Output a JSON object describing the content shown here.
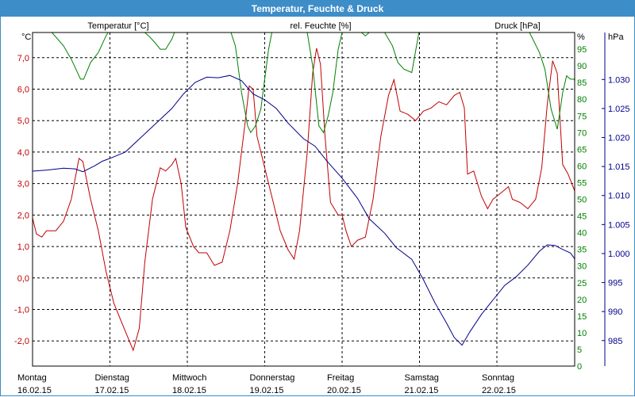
{
  "window": {
    "title": "Temperatur, Feuchte & Druck"
  },
  "colors": {
    "temperature": "#c00000",
    "humidity": "#008000",
    "pressure": "#00008b",
    "grid": "#000000",
    "title_bar": "#3c8dc8"
  },
  "chart_data": {
    "type": "line",
    "title": "Temperatur, Feuchte & Druck",
    "x_days": [
      {
        "day": "Montag",
        "date": "16.02.15"
      },
      {
        "day": "Dienstag",
        "date": "17.02.15"
      },
      {
        "day": "Mittwoch",
        "date": "18.02.15"
      },
      {
        "day": "Donnerstag",
        "date": "19.02.15"
      },
      {
        "day": "Freitag",
        "date": "20.02.15"
      },
      {
        "day": "Samstag",
        "date": "21.02.15"
      },
      {
        "day": "Sonntag",
        "date": "22.02.15"
      }
    ],
    "x_range_days": [
      0,
      7
    ],
    "grid": true,
    "axes": {
      "temperature": {
        "label": "Temperatur [°C]",
        "unit": "°C",
        "ylim": [
          -2.8,
          7.8
        ],
        "ticks": [
          "-2,0",
          "-1,0",
          "0,0",
          "1,0",
          "2,0",
          "3,0",
          "4,0",
          "5,0",
          "6,0",
          "7,0"
        ]
      },
      "humidity": {
        "label": "rel. Feuchte [%]",
        "unit": "%",
        "ylim": [
          0,
          100
        ],
        "ticks": [
          "0",
          "5",
          "10",
          "15",
          "20",
          "25",
          "30",
          "35",
          "40",
          "45",
          "50",
          "55",
          "60",
          "65",
          "70",
          "75",
          "80",
          "85",
          "90",
          "95"
        ]
      },
      "pressure": {
        "label": "Druck [hPa]",
        "unit": "hPa",
        "ylim": [
          980.6,
          1038.1
        ],
        "ticks": [
          "985",
          "990",
          "995",
          "1.000",
          "1.005",
          "1.010",
          "1.015",
          "1.020",
          "1.025",
          "1.030"
        ]
      }
    },
    "series": [
      {
        "name": "Temperatur [°C]",
        "axis": "temperature",
        "points": [
          [
            0.0,
            1.9
          ],
          [
            0.05,
            1.4
          ],
          [
            0.12,
            1.3
          ],
          [
            0.18,
            1.5
          ],
          [
            0.3,
            1.5
          ],
          [
            0.4,
            1.8
          ],
          [
            0.5,
            2.5
          ],
          [
            0.6,
            3.8
          ],
          [
            0.65,
            3.7
          ],
          [
            0.75,
            2.5
          ],
          [
            0.85,
            1.5
          ],
          [
            0.95,
            0.2
          ],
          [
            1.05,
            -0.8
          ],
          [
            1.15,
            -1.4
          ],
          [
            1.25,
            -2.0
          ],
          [
            1.3,
            -2.3
          ],
          [
            1.38,
            -1.6
          ],
          [
            1.45,
            0.5
          ],
          [
            1.55,
            2.5
          ],
          [
            1.65,
            3.5
          ],
          [
            1.72,
            3.4
          ],
          [
            1.8,
            3.6
          ],
          [
            1.85,
            3.8
          ],
          [
            1.92,
            3.0
          ],
          [
            1.98,
            1.6
          ],
          [
            2.08,
            1.0
          ],
          [
            2.15,
            0.8
          ],
          [
            2.25,
            0.8
          ],
          [
            2.35,
            0.4
          ],
          [
            2.45,
            0.5
          ],
          [
            2.55,
            1.5
          ],
          [
            2.65,
            3.0
          ],
          [
            2.75,
            5.0
          ],
          [
            2.8,
            6.1
          ],
          [
            2.85,
            6.0
          ],
          [
            2.9,
            4.5
          ],
          [
            3.0,
            3.5
          ],
          [
            3.1,
            2.5
          ],
          [
            3.2,
            1.5
          ],
          [
            3.3,
            0.9
          ],
          [
            3.38,
            0.6
          ],
          [
            3.45,
            1.5
          ],
          [
            3.55,
            4.0
          ],
          [
            3.62,
            6.5
          ],
          [
            3.67,
            7.3
          ],
          [
            3.72,
            6.8
          ],
          [
            3.78,
            4.5
          ],
          [
            3.85,
            2.4
          ],
          [
            3.95,
            2.0
          ],
          [
            4.0,
            2.0
          ],
          [
            4.05,
            1.5
          ],
          [
            4.12,
            1.0
          ],
          [
            4.2,
            1.2
          ],
          [
            4.3,
            1.3
          ],
          [
            4.4,
            2.5
          ],
          [
            4.5,
            4.5
          ],
          [
            4.6,
            5.8
          ],
          [
            4.67,
            6.3
          ],
          [
            4.75,
            5.3
          ],
          [
            4.85,
            5.2
          ],
          [
            4.95,
            5.0
          ],
          [
            5.05,
            5.3
          ],
          [
            5.15,
            5.4
          ],
          [
            5.25,
            5.6
          ],
          [
            5.35,
            5.5
          ],
          [
            5.45,
            5.8
          ],
          [
            5.52,
            5.9
          ],
          [
            5.58,
            5.4
          ],
          [
            5.62,
            3.3
          ],
          [
            5.7,
            3.4
          ],
          [
            5.8,
            2.6
          ],
          [
            5.88,
            2.2
          ],
          [
            5.95,
            2.5
          ],
          [
            6.05,
            2.7
          ],
          [
            6.15,
            2.9
          ],
          [
            6.2,
            2.5
          ],
          [
            6.3,
            2.4
          ],
          [
            6.4,
            2.2
          ],
          [
            6.5,
            2.5
          ],
          [
            6.58,
            3.5
          ],
          [
            6.65,
            5.5
          ],
          [
            6.72,
            6.9
          ],
          [
            6.78,
            6.5
          ],
          [
            6.85,
            3.6
          ],
          [
            6.92,
            3.3
          ],
          [
            7.0,
            2.8
          ],
          [
            7.05,
            3.1
          ]
        ]
      },
      {
        "name": "rel. Feuchte [%]",
        "axis": "humidity",
        "points": [
          [
            0.0,
            100
          ],
          [
            0.1,
            100
          ],
          [
            0.25,
            100
          ],
          [
            0.4,
            96
          ],
          [
            0.5,
            92
          ],
          [
            0.62,
            86
          ],
          [
            0.66,
            86
          ],
          [
            0.75,
            91
          ],
          [
            0.85,
            94
          ],
          [
            0.95,
            99
          ],
          [
            1.0,
            101
          ],
          [
            1.4,
            101
          ],
          [
            1.5,
            99
          ],
          [
            1.58,
            97
          ],
          [
            1.65,
            95
          ],
          [
            1.72,
            95
          ],
          [
            1.8,
            98
          ],
          [
            1.85,
            101
          ],
          [
            2.5,
            101
          ],
          [
            2.55,
            101
          ],
          [
            2.62,
            96
          ],
          [
            2.7,
            82
          ],
          [
            2.78,
            72
          ],
          [
            2.82,
            70
          ],
          [
            2.88,
            72
          ],
          [
            2.95,
            77
          ],
          [
            3.0,
            86
          ],
          [
            3.05,
            95
          ],
          [
            3.1,
            101
          ],
          [
            3.45,
            101
          ],
          [
            3.55,
            100
          ],
          [
            3.62,
            90
          ],
          [
            3.7,
            72
          ],
          [
            3.76,
            70
          ],
          [
            3.82,
            75
          ],
          [
            3.88,
            82
          ],
          [
            3.95,
            95
          ],
          [
            4.0,
            100
          ],
          [
            4.1,
            101
          ],
          [
            4.2,
            101
          ],
          [
            4.3,
            99
          ],
          [
            4.4,
            101
          ],
          [
            4.55,
            100
          ],
          [
            4.65,
            96
          ],
          [
            4.72,
            91
          ],
          [
            4.8,
            89
          ],
          [
            4.9,
            88
          ],
          [
            5.0,
            101
          ],
          [
            6.35,
            101
          ],
          [
            6.4,
            101
          ],
          [
            6.55,
            94
          ],
          [
            6.62,
            89
          ],
          [
            6.7,
            77
          ],
          [
            6.78,
            71
          ],
          [
            6.85,
            82
          ],
          [
            6.9,
            87
          ],
          [
            6.95,
            86
          ],
          [
            7.0,
            86
          ],
          [
            7.05,
            80
          ]
        ]
      },
      {
        "name": "Druck [hPa]",
        "axis": "pressure",
        "points": [
          [
            0.0,
            1014.2
          ],
          [
            0.2,
            1014.4
          ],
          [
            0.4,
            1014.7
          ],
          [
            0.55,
            1014.6
          ],
          [
            0.65,
            1014.1
          ],
          [
            0.8,
            1015.1
          ],
          [
            0.9,
            1015.9
          ],
          [
            1.0,
            1016.4
          ],
          [
            1.2,
            1017.5
          ],
          [
            1.4,
            1020.0
          ],
          [
            1.6,
            1022.5
          ],
          [
            1.8,
            1025.0
          ],
          [
            1.95,
            1027.5
          ],
          [
            2.1,
            1029.5
          ],
          [
            2.25,
            1030.4
          ],
          [
            2.4,
            1030.3
          ],
          [
            2.55,
            1030.7
          ],
          [
            2.7,
            1029.8
          ],
          [
            2.85,
            1027.5
          ],
          [
            3.0,
            1026.5
          ],
          [
            3.15,
            1025.0
          ],
          [
            3.3,
            1022.5
          ],
          [
            3.5,
            1019.8
          ],
          [
            3.65,
            1018.5
          ],
          [
            3.8,
            1016.0
          ],
          [
            4.0,
            1013.0
          ],
          [
            4.2,
            1009.5
          ],
          [
            4.35,
            1006.0
          ],
          [
            4.55,
            1003.5
          ],
          [
            4.7,
            1001.0
          ],
          [
            4.9,
            999.0
          ],
          [
            5.05,
            995.5
          ],
          [
            5.2,
            991.5
          ],
          [
            5.35,
            988.0
          ],
          [
            5.45,
            985.5
          ],
          [
            5.55,
            984.2
          ],
          [
            5.65,
            986.5
          ],
          [
            5.8,
            989.5
          ],
          [
            5.95,
            992.0
          ],
          [
            6.1,
            994.5
          ],
          [
            6.25,
            996.0
          ],
          [
            6.4,
            998.0
          ],
          [
            6.55,
            1000.4
          ],
          [
            6.65,
            1001.5
          ],
          [
            6.75,
            1001.4
          ],
          [
            6.85,
            1000.7
          ],
          [
            6.95,
            1000.1
          ],
          [
            7.0,
            999.2
          ],
          [
            7.08,
            996.0
          ]
        ]
      }
    ]
  }
}
